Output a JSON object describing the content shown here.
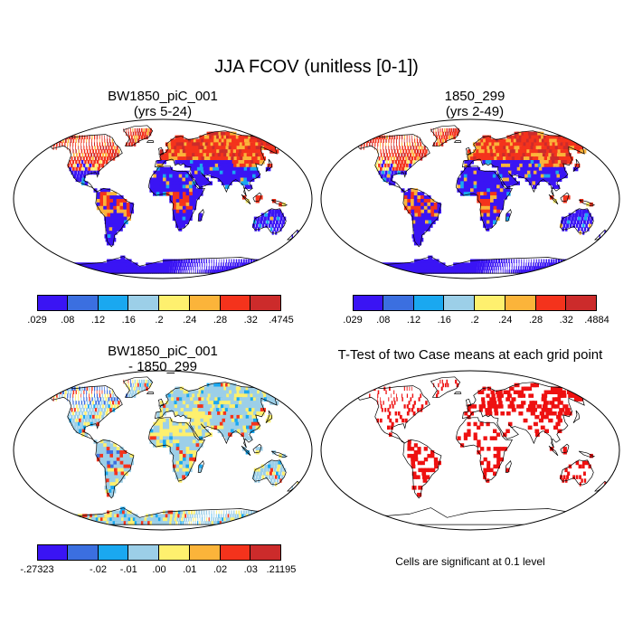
{
  "figure": {
    "title": "JJA FCOV (unitless [0-1])"
  },
  "panels": {
    "top_left": {
      "title_line1": "BW1850_piC_001",
      "title_line2": "(yrs 5-24)",
      "colorbar": {
        "colors": [
          "#3a14f4",
          "#3b6fe0",
          "#1aa8f0",
          "#9ccfe8",
          "#fef06e",
          "#fbb43a",
          "#f4331c",
          "#cc2b2b"
        ],
        "labels": [
          ".029",
          ".08",
          ".12",
          ".16",
          ".2",
          ".24",
          ".28",
          ".32",
          ".4745"
        ]
      }
    },
    "top_right": {
      "title_line1": "1850_299",
      "title_line2": "(yrs 2-49)",
      "colorbar": {
        "colors": [
          "#3a14f4",
          "#3b6fe0",
          "#1aa8f0",
          "#9ccfe8",
          "#fef06e",
          "#fbb43a",
          "#f4331c",
          "#cc2b2b"
        ],
        "labels": [
          ".029",
          ".08",
          ".12",
          ".16",
          ".2",
          ".24",
          ".28",
          ".32",
          ".4884"
        ]
      }
    },
    "bottom_left": {
      "title_line1": "BW1850_piC_001",
      "title_line2": "- 1850_299",
      "colorbar": {
        "colors": [
          "#3a14f4",
          "#3b6fe0",
          "#1aa8f0",
          "#9ccfe8",
          "#fef06e",
          "#fbb43a",
          "#f4331c",
          "#cc2b2b"
        ],
        "labels": [
          "-.27323",
          "",
          "-.02",
          "-.01",
          ".00",
          ".01",
          ".02",
          ".03",
          ".21195"
        ]
      }
    },
    "bottom_right": {
      "title_line1": "T-Test of two Case means at each grid point",
      "note": "Cells are significant at 0.1 level"
    }
  },
  "colors": {
    "low": "#3a14f4",
    "ocean": "#ffffff",
    "significant": "#ee1111",
    "diff_neutral": "#a7cfe4",
    "diff_pos": "#fbe56a",
    "coast": "#000000"
  }
}
